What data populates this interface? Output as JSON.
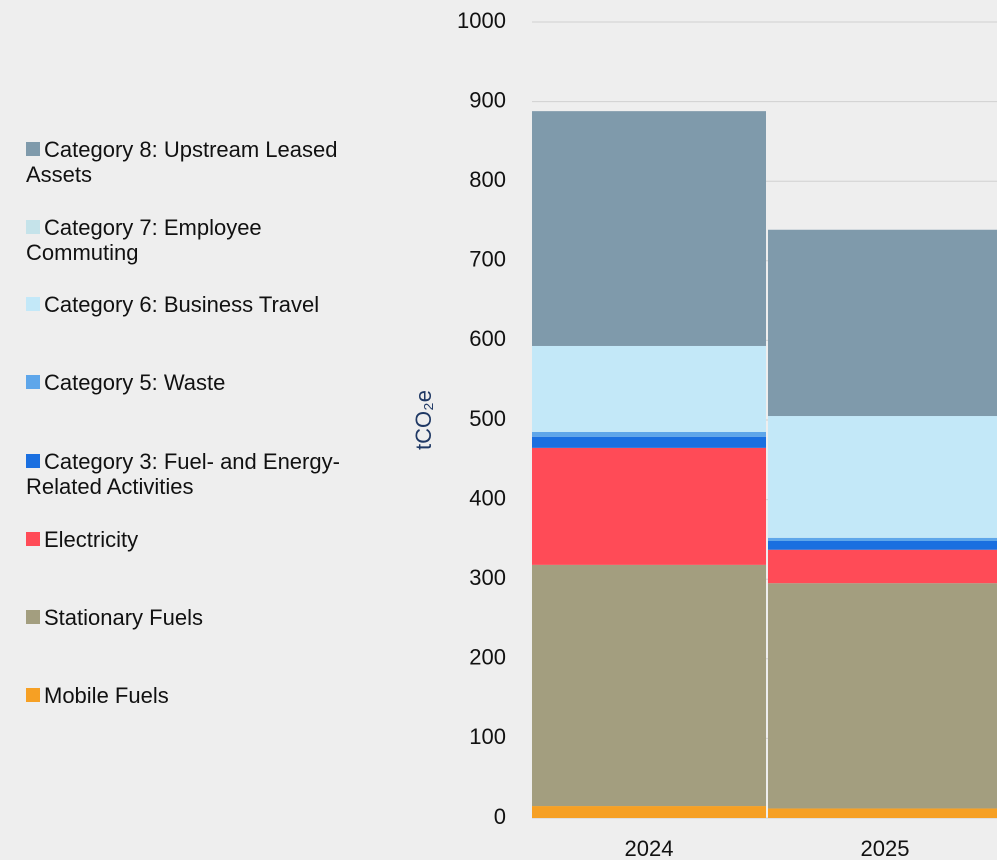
{
  "chart_data": {
    "type": "stacked_bar",
    "y_label": "tCO₂e",
    "categories": [
      "2024",
      "2025"
    ],
    "series": [
      {
        "name": "Mobile Fuels",
        "color": "#f6a024",
        "values": [
          15,
          12
        ]
      },
      {
        "name": "Stationary Fuels",
        "color": "#a39e7f",
        "values": [
          303,
          283
        ]
      },
      {
        "name": "Electricity",
        "color": "#ff4b57",
        "values": [
          147,
          42
        ]
      },
      {
        "name": "Category 3: Fuel- and Energy-Related Activities",
        "color": "#1a6fe0",
        "values": [
          14,
          11
        ]
      },
      {
        "name": "Category 5: Waste",
        "color": "#5ea6ea",
        "values": [
          6,
          4
        ]
      },
      {
        "name": "Category 6: Business Travel",
        "color": "#c3e8f8",
        "values": [
          108,
          153
        ]
      },
      {
        "name": "Category 7: Employee Commuting",
        "color": "#c5e3ea",
        "values": [
          0,
          0
        ]
      },
      {
        "name": "Category 8: Upstream Leased Assets",
        "color": "#7f9aab",
        "values": [
          295,
          234
        ]
      }
    ],
    "ylim": [
      0,
      1000
    ],
    "yticks": [
      0,
      100,
      200,
      300,
      400,
      500,
      600,
      700,
      800,
      900,
      1000
    ],
    "grid": true,
    "legend": "left"
  }
}
